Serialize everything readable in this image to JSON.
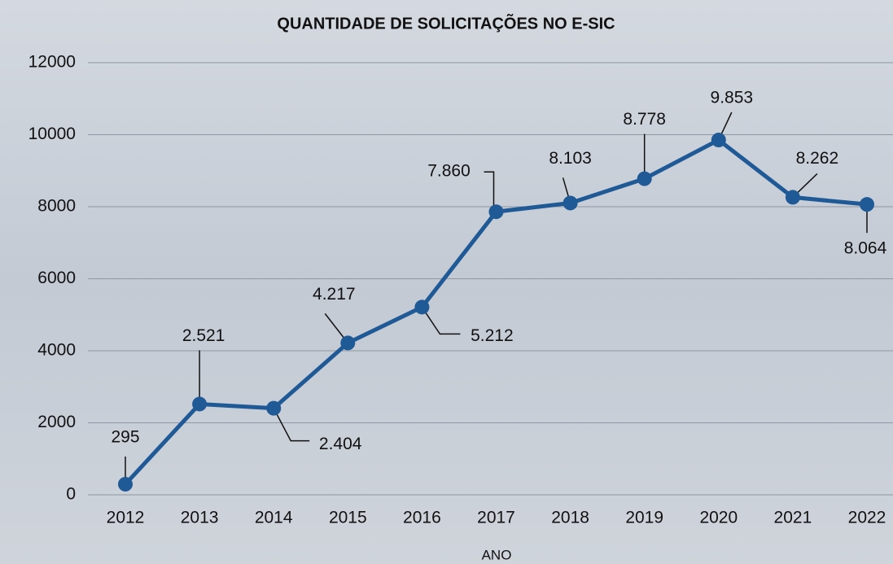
{
  "chart_data": {
    "type": "line",
    "title": "QUANTIDADE DE SOLICITAÇÕES NO E-SIC",
    "x_label": "ANO",
    "categories": [
      "2012",
      "2013",
      "2014",
      "2015",
      "2016",
      "2017",
      "2018",
      "2019",
      "2020",
      "2021",
      "2022"
    ],
    "values": [
      295,
      2521,
      2404,
      4217,
      5212,
      7860,
      8103,
      8778,
      9853,
      8262,
      8064
    ],
    "value_labels": [
      "295",
      "2.521",
      "2.404",
      "4.217",
      "5.212",
      "7.860",
      "8.103",
      "8.778",
      "9.853",
      "8.262",
      "8.064"
    ],
    "color": "#1f5a96",
    "ylim": [
      0,
      12000
    ],
    "yticks": [
      0,
      2000,
      4000,
      6000,
      8000,
      10000,
      12000
    ],
    "grid": true
  }
}
